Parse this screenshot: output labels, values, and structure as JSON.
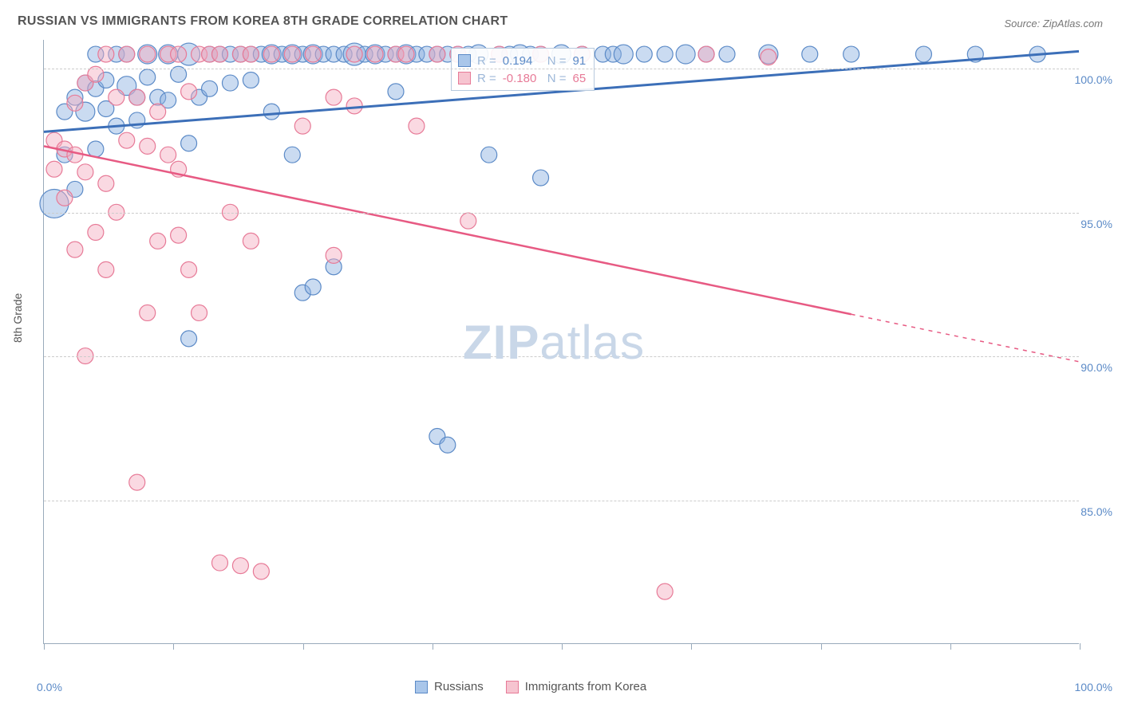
{
  "title": "RUSSIAN VS IMMIGRANTS FROM KOREA 8TH GRADE CORRELATION CHART",
  "source": "Source: ZipAtlas.com",
  "ylabel": "8th Grade",
  "watermark_a": "ZIP",
  "watermark_b": "atlas",
  "chart": {
    "type": "scatter",
    "background_color": "#ffffff",
    "grid_color": "#cccccc",
    "axis_color": "#99aabb",
    "tick_label_color": "#5b8ac7",
    "title_color": "#555555",
    "title_fontsize": 16,
    "label_fontsize": 14,
    "xlim": [
      0,
      100
    ],
    "ylim": [
      80,
      101
    ],
    "yticks": [
      85,
      90,
      95,
      100
    ],
    "ytick_labels": [
      "85.0%",
      "90.0%",
      "95.0%",
      "100.0%"
    ],
    "xticks": [
      0,
      12.5,
      25,
      37.5,
      50,
      62.5,
      75,
      87.5,
      100
    ],
    "xlim_labels": {
      "min": "0.0%",
      "max": "100.0%"
    },
    "legend_bottom": [
      {
        "label": "Russians",
        "fill": "#a9c6ea",
        "stroke": "#5b8ac7"
      },
      {
        "label": "Immigrants from Korea",
        "fill": "#f6c4d0",
        "stroke": "#e77a97"
      }
    ],
    "legend_top": {
      "rows": [
        {
          "sq_fill": "#a9c6ea",
          "sq_stroke": "#5b8ac7",
          "r_label": "R =",
          "r_value": "0.194",
          "n_label": "N =",
          "n_value": "91"
        },
        {
          "sq_fill": "#f6c4d0",
          "sq_stroke": "#e77a97",
          "r_label": "R =",
          "r_value": "-0.180",
          "n_label": "N =",
          "n_value": "65"
        }
      ]
    },
    "series": [
      {
        "name": "russians",
        "color_fill": "rgba(137,175,224,0.45)",
        "color_stroke": "#5b8ac7",
        "marker_r": 9,
        "trend": {
          "x1": 0,
          "y1": 97.8,
          "x2": 100,
          "y2": 100.6,
          "solid_until_x": 100,
          "stroke": "#3c6fb8",
          "stroke_width": 3
        },
        "points": [
          [
            1,
            95.3,
            18
          ],
          [
            2,
            97.0,
            10
          ],
          [
            2,
            98.5,
            10
          ],
          [
            3,
            99.0,
            10
          ],
          [
            3,
            95.8,
            10
          ],
          [
            4,
            98.5,
            12
          ],
          [
            4,
            99.5,
            10
          ],
          [
            5,
            97.2,
            10
          ],
          [
            5,
            99.3,
            10
          ],
          [
            5,
            100.5,
            10
          ],
          [
            6,
            98.6,
            10
          ],
          [
            6,
            99.6,
            10
          ],
          [
            7,
            100.5,
            10
          ],
          [
            7,
            98.0,
            10
          ],
          [
            8,
            99.4,
            12
          ],
          [
            8,
            100.5,
            10
          ],
          [
            9,
            99.0,
            10
          ],
          [
            9,
            98.2,
            10
          ],
          [
            10,
            99.7,
            10
          ],
          [
            10,
            100.5,
            12
          ],
          [
            11,
            99.0,
            10
          ],
          [
            12,
            100.5,
            12
          ],
          [
            12,
            98.9,
            10
          ],
          [
            13,
            99.8,
            10
          ],
          [
            14,
            100.5,
            14
          ],
          [
            14,
            97.4,
            10
          ],
          [
            14,
            90.6,
            10
          ],
          [
            15,
            99.0,
            10
          ],
          [
            16,
            100.5,
            10
          ],
          [
            16,
            99.3,
            10
          ],
          [
            17,
            100.5,
            10
          ],
          [
            18,
            100.5,
            10
          ],
          [
            18,
            99.5,
            10
          ],
          [
            19,
            100.5,
            10
          ],
          [
            20,
            100.5,
            10
          ],
          [
            20,
            99.6,
            10
          ],
          [
            21,
            100.5,
            10
          ],
          [
            22,
            100.5,
            12
          ],
          [
            22,
            98.5,
            10
          ],
          [
            23,
            100.5,
            10
          ],
          [
            24,
            100.5,
            12
          ],
          [
            24,
            97.0,
            10
          ],
          [
            25,
            100.5,
            10
          ],
          [
            25,
            92.2,
            10
          ],
          [
            26,
            100.5,
            12
          ],
          [
            26,
            92.4,
            10
          ],
          [
            27,
            100.5,
            10
          ],
          [
            28,
            100.5,
            10
          ],
          [
            28,
            93.1,
            10
          ],
          [
            29,
            100.5,
            10
          ],
          [
            30,
            100.5,
            14
          ],
          [
            31,
            100.5,
            10
          ],
          [
            32,
            100.5,
            12
          ],
          [
            33,
            100.5,
            10
          ],
          [
            34,
            100.5,
            10
          ],
          [
            34,
            99.2,
            10
          ],
          [
            35,
            100.5,
            12
          ],
          [
            36,
            100.5,
            10
          ],
          [
            37,
            100.5,
            10
          ],
          [
            38,
            100.5,
            10
          ],
          [
            38,
            87.2,
            10
          ],
          [
            39,
            100.5,
            10
          ],
          [
            39,
            86.9,
            10
          ],
          [
            40,
            100.5,
            10
          ],
          [
            41,
            100.5,
            10
          ],
          [
            42,
            100.5,
            12
          ],
          [
            43,
            97.0,
            10
          ],
          [
            44,
            100.5,
            10
          ],
          [
            45,
            100.5,
            10
          ],
          [
            46,
            100.5,
            12
          ],
          [
            47,
            100.5,
            10
          ],
          [
            48,
            100.5,
            10
          ],
          [
            48,
            96.2,
            10
          ],
          [
            50,
            100.5,
            12
          ],
          [
            52,
            100.5,
            10
          ],
          [
            54,
            100.5,
            10
          ],
          [
            55,
            100.5,
            10
          ],
          [
            56,
            100.5,
            12
          ],
          [
            58,
            100.5,
            10
          ],
          [
            60,
            100.5,
            10
          ],
          [
            62,
            100.5,
            12
          ],
          [
            64,
            100.5,
            10
          ],
          [
            66,
            100.5,
            10
          ],
          [
            70,
            100.5,
            12
          ],
          [
            74,
            100.5,
            10
          ],
          [
            78,
            100.5,
            10
          ],
          [
            85,
            100.5,
            10
          ],
          [
            90,
            100.5,
            10
          ],
          [
            96,
            100.5,
            10
          ]
        ]
      },
      {
        "name": "korea",
        "color_fill": "rgba(245,170,190,0.45)",
        "color_stroke": "#e77a97",
        "marker_r": 9,
        "trend": {
          "x1": 0,
          "y1": 97.3,
          "x2": 100,
          "y2": 89.8,
          "solid_until_x": 78,
          "stroke": "#e75a83",
          "stroke_width": 2.5
        },
        "points": [
          [
            1,
            97.5,
            10
          ],
          [
            1,
            96.5,
            10
          ],
          [
            2,
            97.2,
            10
          ],
          [
            2,
            95.5,
            10
          ],
          [
            3,
            98.8,
            10
          ],
          [
            3,
            93.7,
            10
          ],
          [
            3,
            97.0,
            10
          ],
          [
            4,
            99.5,
            10
          ],
          [
            4,
            96.4,
            10
          ],
          [
            4,
            90.0,
            10
          ],
          [
            5,
            99.8,
            10
          ],
          [
            5,
            94.3,
            10
          ],
          [
            6,
            100.5,
            10
          ],
          [
            6,
            96.0,
            10
          ],
          [
            6,
            93.0,
            10
          ],
          [
            7,
            99.0,
            10
          ],
          [
            7,
            95.0,
            10
          ],
          [
            8,
            100.5,
            10
          ],
          [
            8,
            97.5,
            10
          ],
          [
            9,
            85.6,
            10
          ],
          [
            9,
            99.0,
            10
          ],
          [
            10,
            100.5,
            10
          ],
          [
            10,
            97.3,
            10
          ],
          [
            10,
            91.5,
            10
          ],
          [
            11,
            98.5,
            10
          ],
          [
            11,
            94.0,
            10
          ],
          [
            12,
            100.5,
            10
          ],
          [
            12,
            97.0,
            10
          ],
          [
            13,
            100.5,
            10
          ],
          [
            13,
            96.5,
            10
          ],
          [
            13,
            94.2,
            10
          ],
          [
            14,
            99.2,
            10
          ],
          [
            14,
            93.0,
            10
          ],
          [
            15,
            100.5,
            10
          ],
          [
            15,
            91.5,
            10
          ],
          [
            16,
            100.5,
            10
          ],
          [
            17,
            100.5,
            10
          ],
          [
            17,
            82.8,
            10
          ],
          [
            18,
            95.0,
            10
          ],
          [
            19,
            100.5,
            10
          ],
          [
            19,
            82.7,
            10
          ],
          [
            20,
            100.5,
            10
          ],
          [
            20,
            94.0,
            10
          ],
          [
            21,
            82.5,
            10
          ],
          [
            22,
            100.5,
            10
          ],
          [
            24,
            100.5,
            10
          ],
          [
            25,
            98.0,
            10
          ],
          [
            26,
            100.5,
            10
          ],
          [
            28,
            99.0,
            10
          ],
          [
            28,
            93.5,
            10
          ],
          [
            30,
            100.5,
            10
          ],
          [
            30,
            98.7,
            10
          ],
          [
            32,
            100.5,
            10
          ],
          [
            34,
            100.5,
            10
          ],
          [
            35,
            100.5,
            10
          ],
          [
            36,
            98.0,
            10
          ],
          [
            38,
            100.5,
            10
          ],
          [
            40,
            100.5,
            10
          ],
          [
            41,
            94.7,
            10
          ],
          [
            44,
            100.5,
            10
          ],
          [
            48,
            100.5,
            10
          ],
          [
            52,
            100.5,
            10
          ],
          [
            60,
            81.8,
            10
          ],
          [
            64,
            100.5,
            10
          ],
          [
            70,
            100.4,
            10
          ]
        ]
      }
    ]
  }
}
